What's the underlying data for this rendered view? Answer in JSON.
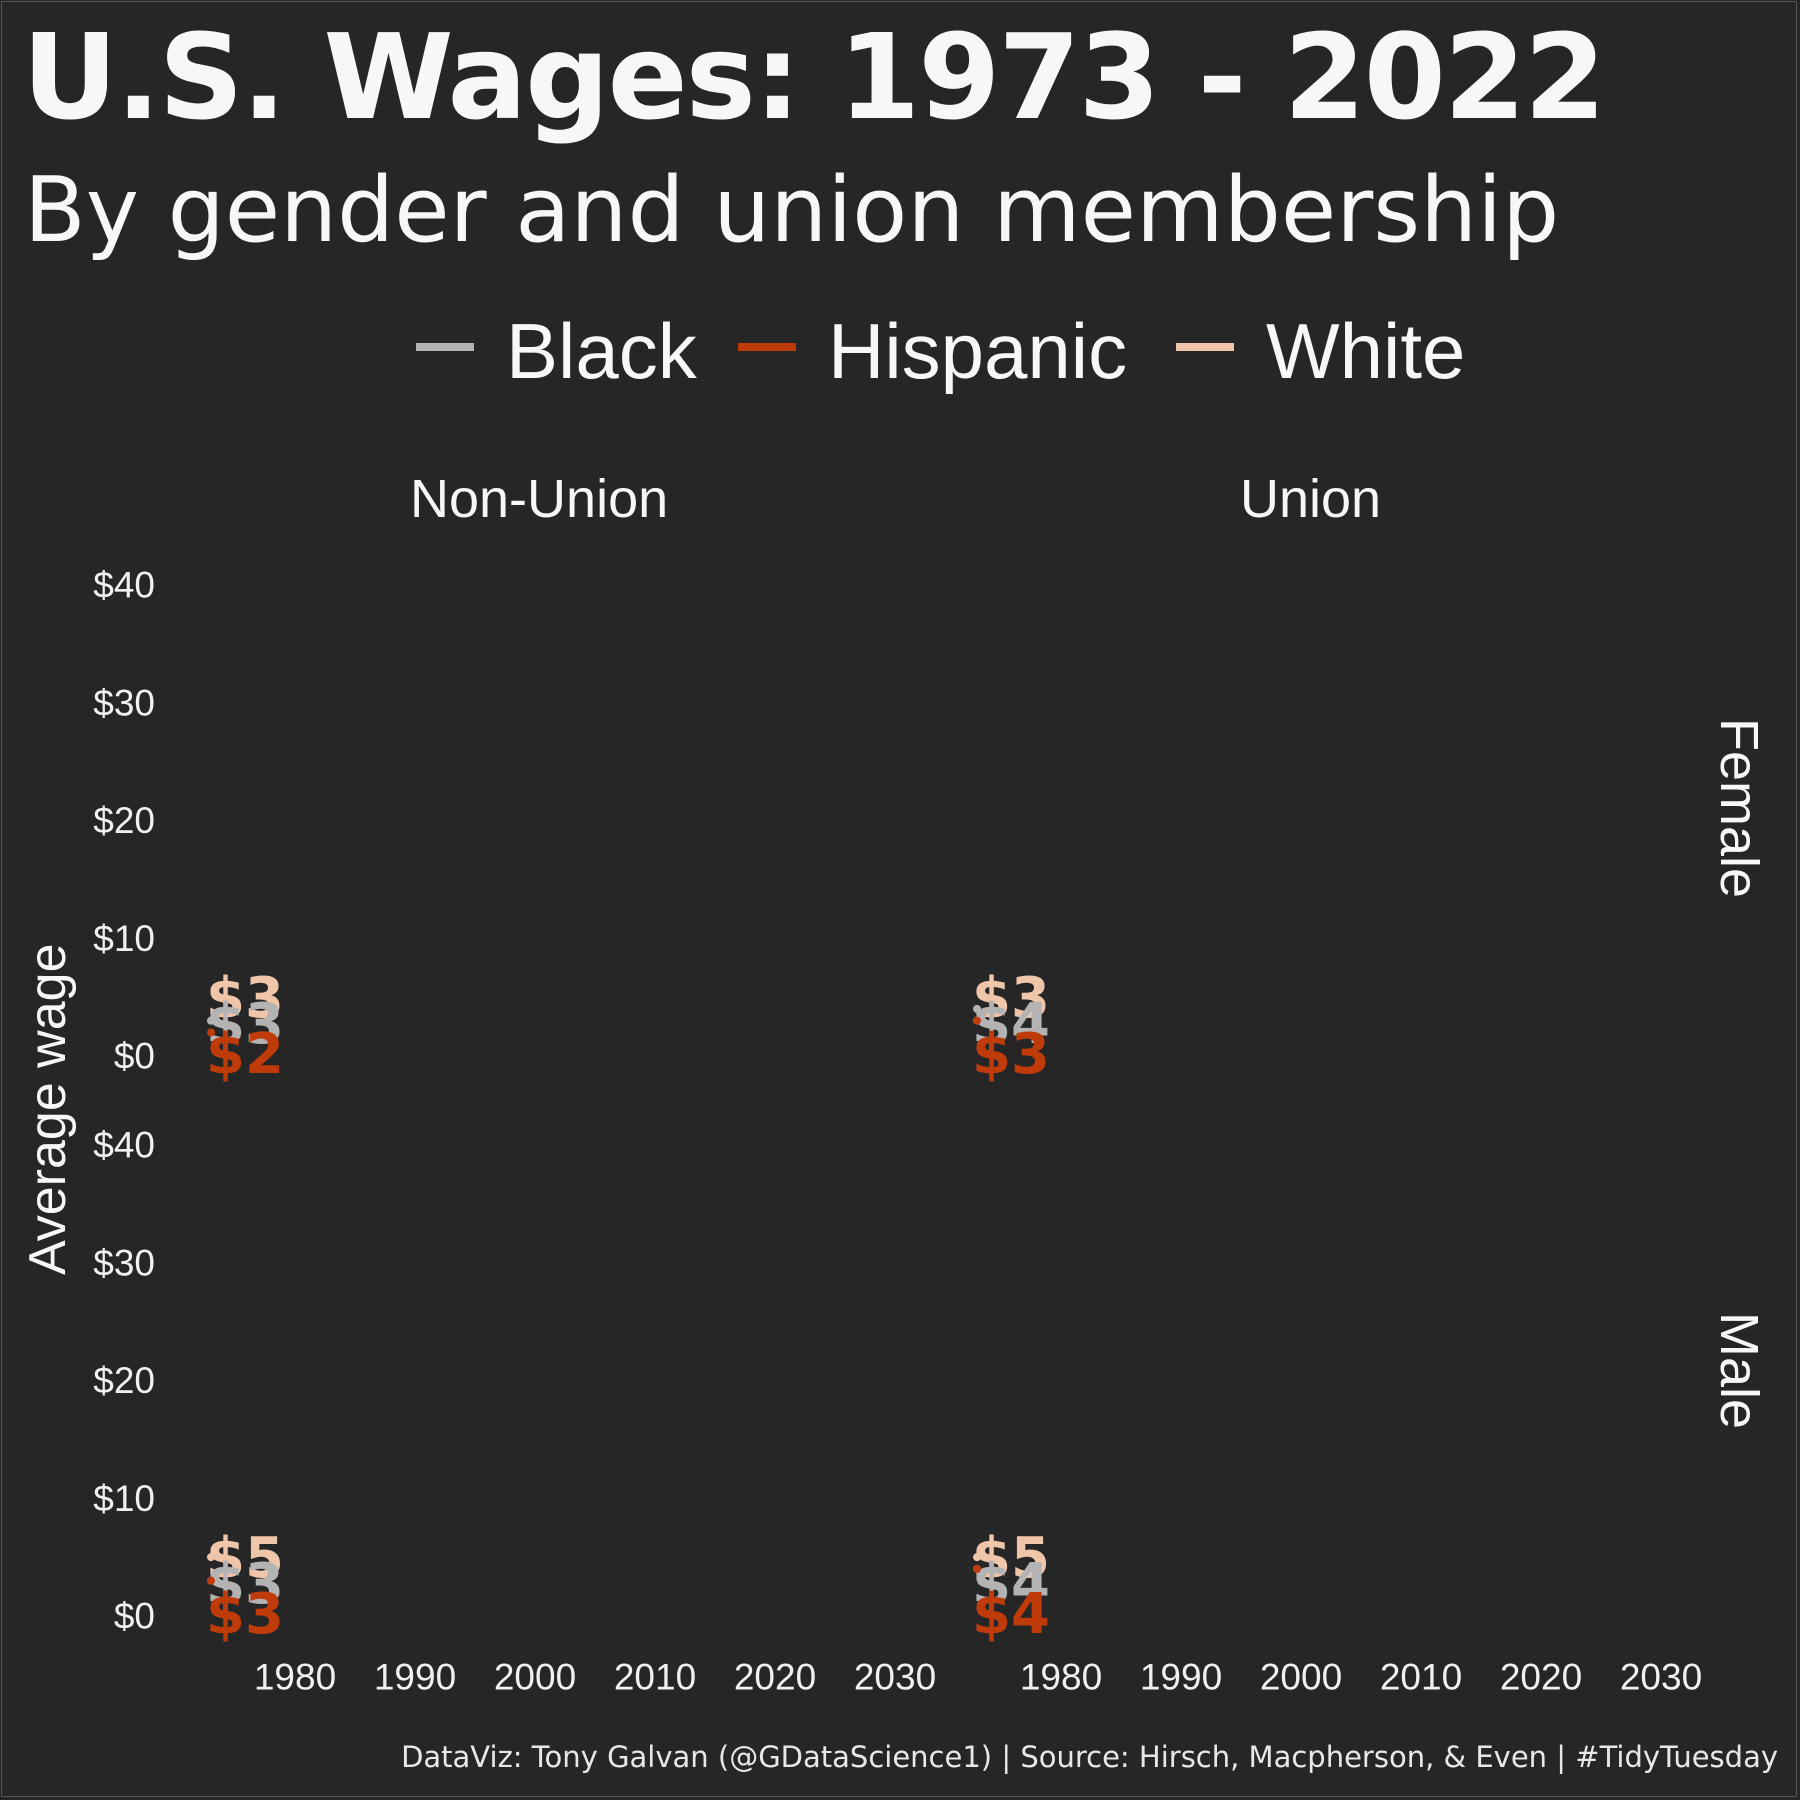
{
  "title": "U.S. Wages: 1973 - 2022",
  "subtitle": "By gender and union membership",
  "caption": "DataViz: Tony Galvan (@GDataScience1)  |  Source: Hirsch, Macpherson, & Even  |  #TidyTuesday",
  "legend": {
    "items": [
      {
        "label": "Black",
        "color": "#b3b3b3"
      },
      {
        "label": "Hispanic",
        "color": "#bf3b0a"
      },
      {
        "label": "White",
        "color": "#f0c6ab"
      }
    ]
  },
  "chart_data": {
    "type": "line",
    "ylabel": "Average wage",
    "xlabel": "",
    "x_ticks": [
      "1980",
      "1990",
      "2000",
      "2010",
      "2020",
      "2030"
    ],
    "x_tick_values": [
      1980,
      1990,
      2000,
      2010,
      2020,
      2030
    ],
    "y_ticks": [
      "$0",
      "$10",
      "$20",
      "$30",
      "$40"
    ],
    "y_tick_values": [
      0,
      10,
      20,
      30,
      40
    ],
    "xlim": [
      1970,
      2035
    ],
    "ylim": [
      0,
      40
    ],
    "grid": false,
    "legend_position": "top",
    "column_facets": [
      "Non-Union",
      "Union"
    ],
    "row_facets": [
      "Female",
      "Male"
    ],
    "panels": [
      {
        "column": "Non-Union",
        "row": "Female",
        "series": [
          {
            "name": "White",
            "x": [
              1973
            ],
            "y": [
              3
            ],
            "label": "$3"
          },
          {
            "name": "Black",
            "x": [
              1973
            ],
            "y": [
              3
            ],
            "label": "$3"
          },
          {
            "name": "Hispanic",
            "x": [
              1973
            ],
            "y": [
              2
            ],
            "label": "$2"
          }
        ]
      },
      {
        "column": "Union",
        "row": "Female",
        "series": [
          {
            "name": "White",
            "x": [
              1973
            ],
            "y": [
              3
            ],
            "label": "$3"
          },
          {
            "name": "Black",
            "x": [
              1973
            ],
            "y": [
              4
            ],
            "label": "$4"
          },
          {
            "name": "Hispanic",
            "x": [
              1973
            ],
            "y": [
              3
            ],
            "label": "$3"
          }
        ]
      },
      {
        "column": "Non-Union",
        "row": "Male",
        "series": [
          {
            "name": "White",
            "x": [
              1973
            ],
            "y": [
              5
            ],
            "label": "$5"
          },
          {
            "name": "Black",
            "x": [
              1973
            ],
            "y": [
              3
            ],
            "label": "$3"
          },
          {
            "name": "Hispanic",
            "x": [
              1973
            ],
            "y": [
              3
            ],
            "label": "$3"
          }
        ]
      },
      {
        "column": "Union",
        "row": "Male",
        "series": [
          {
            "name": "White",
            "x": [
              1973
            ],
            "y": [
              5
            ],
            "label": "$5"
          },
          {
            "name": "Black",
            "x": [
              1973
            ],
            "y": [
              4
            ],
            "label": "$4"
          },
          {
            "name": "Hispanic",
            "x": [
              1973
            ],
            "y": [
              4
            ],
            "label": "$4"
          }
        ]
      }
    ]
  }
}
